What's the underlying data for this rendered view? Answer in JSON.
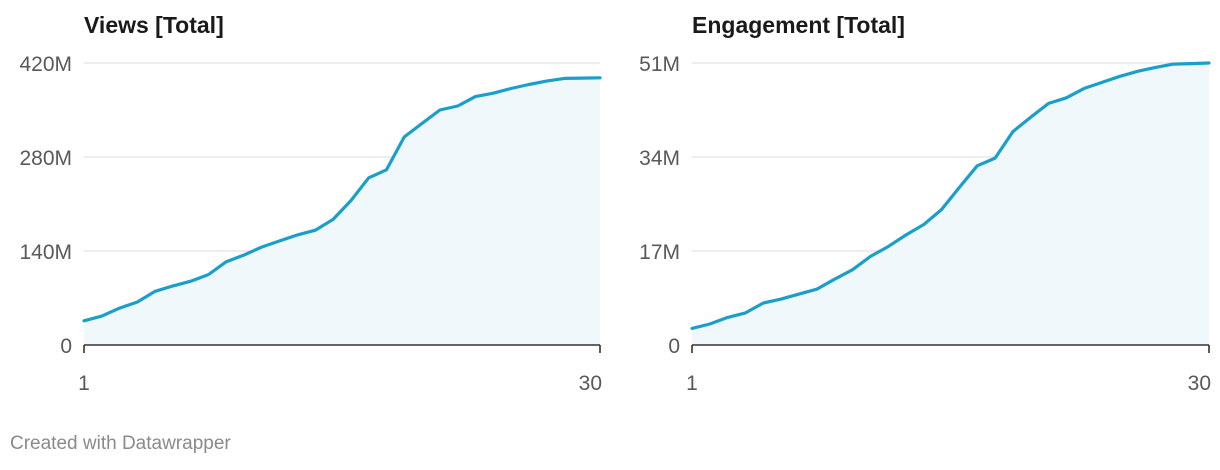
{
  "colors": {
    "line": "#1a9fcb",
    "area": "#f1f8fb"
  },
  "footer": {
    "credit": "Created with Datawrapper"
  },
  "chart_data": [
    {
      "type": "area",
      "title": "Views [Total]",
      "xlabel": "",
      "ylabel": "",
      "x": [
        1,
        2,
        3,
        4,
        5,
        6,
        7,
        8,
        9,
        10,
        11,
        12,
        13,
        14,
        15,
        16,
        17,
        18,
        19,
        20,
        21,
        22,
        23,
        24,
        25,
        26,
        27,
        28,
        29,
        30
      ],
      "xticks": [
        "1",
        "30"
      ],
      "yticks": [
        0,
        140,
        280,
        420
      ],
      "ytick_labels": [
        "0",
        "140M",
        "280M",
        "420M"
      ],
      "ylim": [
        0,
        420
      ],
      "unit": "M",
      "grid": true,
      "series": [
        {
          "values": [
            36,
            43,
            55,
            64,
            80,
            88,
            95,
            105,
            124,
            134,
            146,
            155,
            164,
            171,
            187,
            215,
            249,
            261,
            310,
            330,
            350,
            356,
            370,
            375,
            382,
            388,
            393,
            397,
            397.5,
            398
          ]
        }
      ]
    },
    {
      "type": "area",
      "title": "Engagement [Total]",
      "xlabel": "",
      "ylabel": "",
      "x": [
        1,
        2,
        3,
        4,
        5,
        6,
        7,
        8,
        9,
        10,
        11,
        12,
        13,
        14,
        15,
        16,
        17,
        18,
        19,
        20,
        21,
        22,
        23,
        24,
        25,
        26,
        27,
        28,
        29,
        30
      ],
      "xticks": [
        "1",
        "30"
      ],
      "yticks": [
        0,
        17,
        34,
        51
      ],
      "ytick_labels": [
        "0",
        "17M",
        "34M",
        "51M"
      ],
      "ylim": [
        0,
        51
      ],
      "unit": "M",
      "grid": true,
      "series": [
        {
          "values": [
            3.0,
            3.8,
            5.0,
            5.8,
            7.6,
            8.3,
            9.2,
            10.1,
            11.9,
            13.6,
            16.0,
            17.8,
            19.9,
            21.8,
            24.5,
            28.5,
            32.4,
            33.8,
            38.6,
            41.2,
            43.7,
            44.7,
            46.4,
            47.5,
            48.6,
            49.5,
            50.2,
            50.8,
            50.9,
            51.0
          ]
        }
      ]
    }
  ]
}
